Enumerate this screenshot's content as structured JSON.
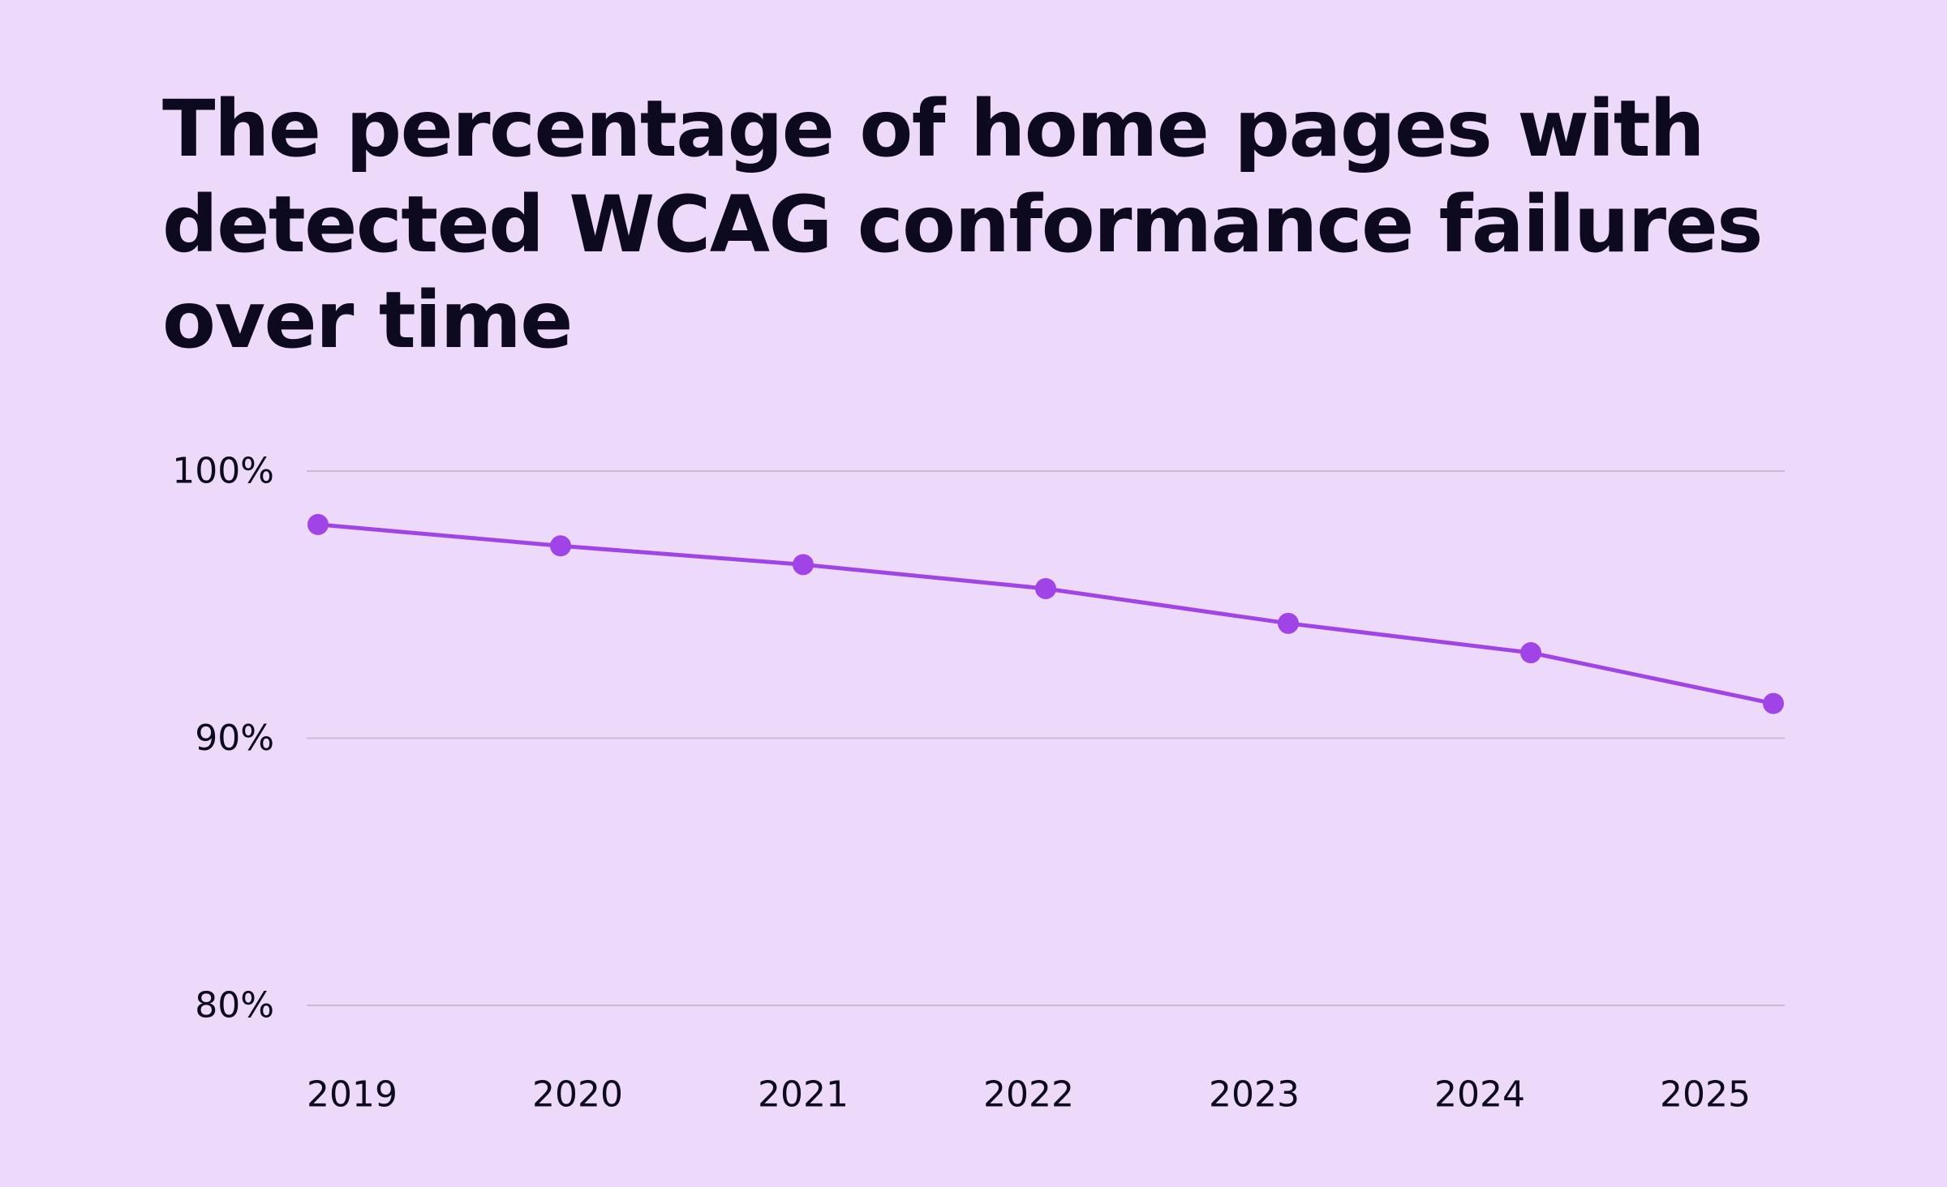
{
  "chart_data": {
    "type": "line",
    "title": "The percentage of home pages with detected WCAG conformance failures over time",
    "xlabel": "",
    "ylabel": "",
    "categories": [
      "2019",
      "2020",
      "2021",
      "2022",
      "2023",
      "2024",
      "2025"
    ],
    "series": [
      {
        "values": [
          98.0,
          97.2,
          96.5,
          95.6,
          94.3,
          93.2,
          91.3
        ]
      }
    ],
    "y_ticks": [
      "100%",
      "90%",
      "80%"
    ],
    "y_tick_values": [
      100,
      90,
      80
    ],
    "ylim": [
      80,
      100
    ],
    "grid": true,
    "legend": "none",
    "colors": {
      "background": "#EDDAFB",
      "line": "#A044E8",
      "grid": "#C9B9D6",
      "text": "#0D0A1F"
    }
  }
}
